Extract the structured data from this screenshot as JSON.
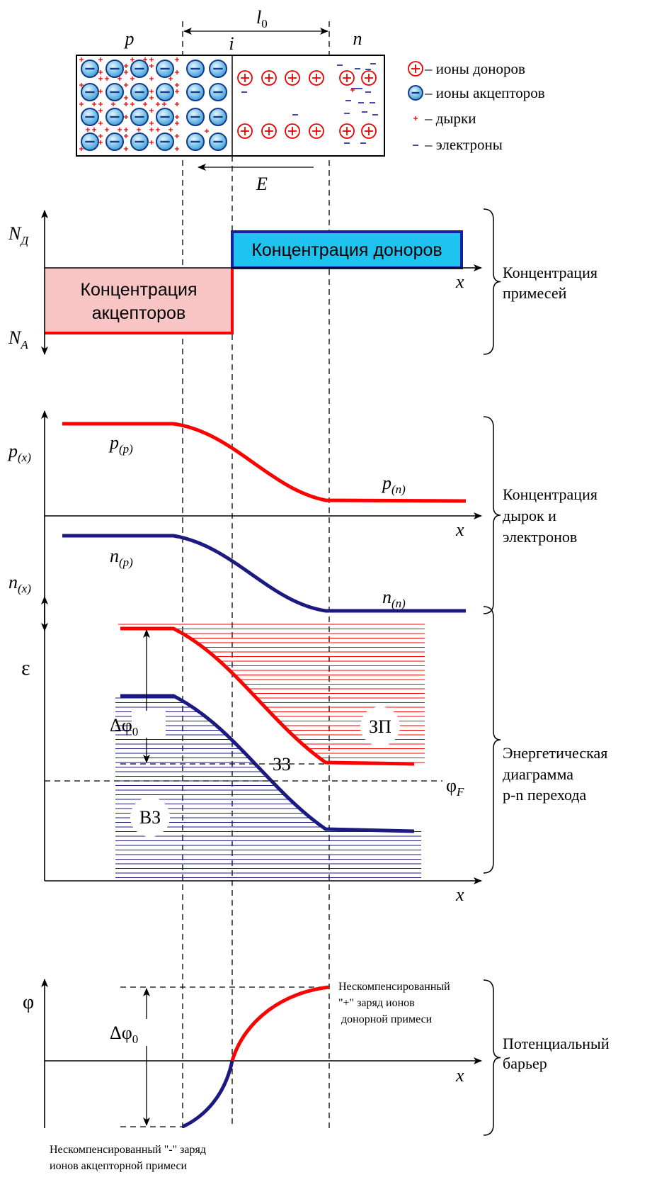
{
  "crystal": {
    "region_p": "p",
    "region_i": "i",
    "region_n": "n",
    "width_label": {
      "main": "l",
      "sub": "0"
    },
    "field_label": "E"
  },
  "legend": [
    "– ионы доноров",
    "– ионы акцепторов",
    "– дырки",
    "– электроны"
  ],
  "impurities": {
    "y_top": {
      "main": "N",
      "sub": "Д"
    },
    "y_bottom": {
      "main": "N",
      "sub": "A"
    },
    "x_label": "x",
    "donors": "Концентрация доноров",
    "acceptors": [
      "Концентрация",
      "акцепторов"
    ],
    "caption": [
      "Концентрация",
      "примесей"
    ]
  },
  "carriers": {
    "y_top": {
      "main": "p",
      "sub": "(x)"
    },
    "y_bottom": {
      "main": "n",
      "sub": "(x)"
    },
    "x_label": "x",
    "p_p": {
      "main": "p",
      "sub": "(p)"
    },
    "p_n": {
      "main": "p",
      "sub": "(n)"
    },
    "n_p": {
      "main": "n",
      "sub": "(p)"
    },
    "n_n": {
      "main": "n",
      "sub": "(n)"
    },
    "caption": [
      "Концентрация",
      "дырок и",
      "электронов"
    ]
  },
  "energy": {
    "y_label": "ε",
    "x_label": "x",
    "delta": {
      "main": "Δφ",
      "sub": "0"
    },
    "fermi": {
      "main": "φ",
      "sub": "F"
    },
    "conduction": "ЗП",
    "gap": "ЗЗ",
    "valence": "ВЗ",
    "caption": [
      "Энергетическая",
      "диаграмма",
      "p-n перехода"
    ]
  },
  "potential": {
    "y_label": "φ",
    "x_label": "x",
    "delta": {
      "main": "Δφ",
      "sub": "0"
    },
    "donor_note": [
      "Нескомпенсированный",
      "\"+\" заряд ионов",
      "донорной примеси"
    ],
    "acceptor_note": [
      "Нескомпенсированный \"-\" заряд",
      "ионов акцепторной примеси"
    ],
    "caption": [
      "Потенциальный",
      "барьер"
    ]
  }
}
